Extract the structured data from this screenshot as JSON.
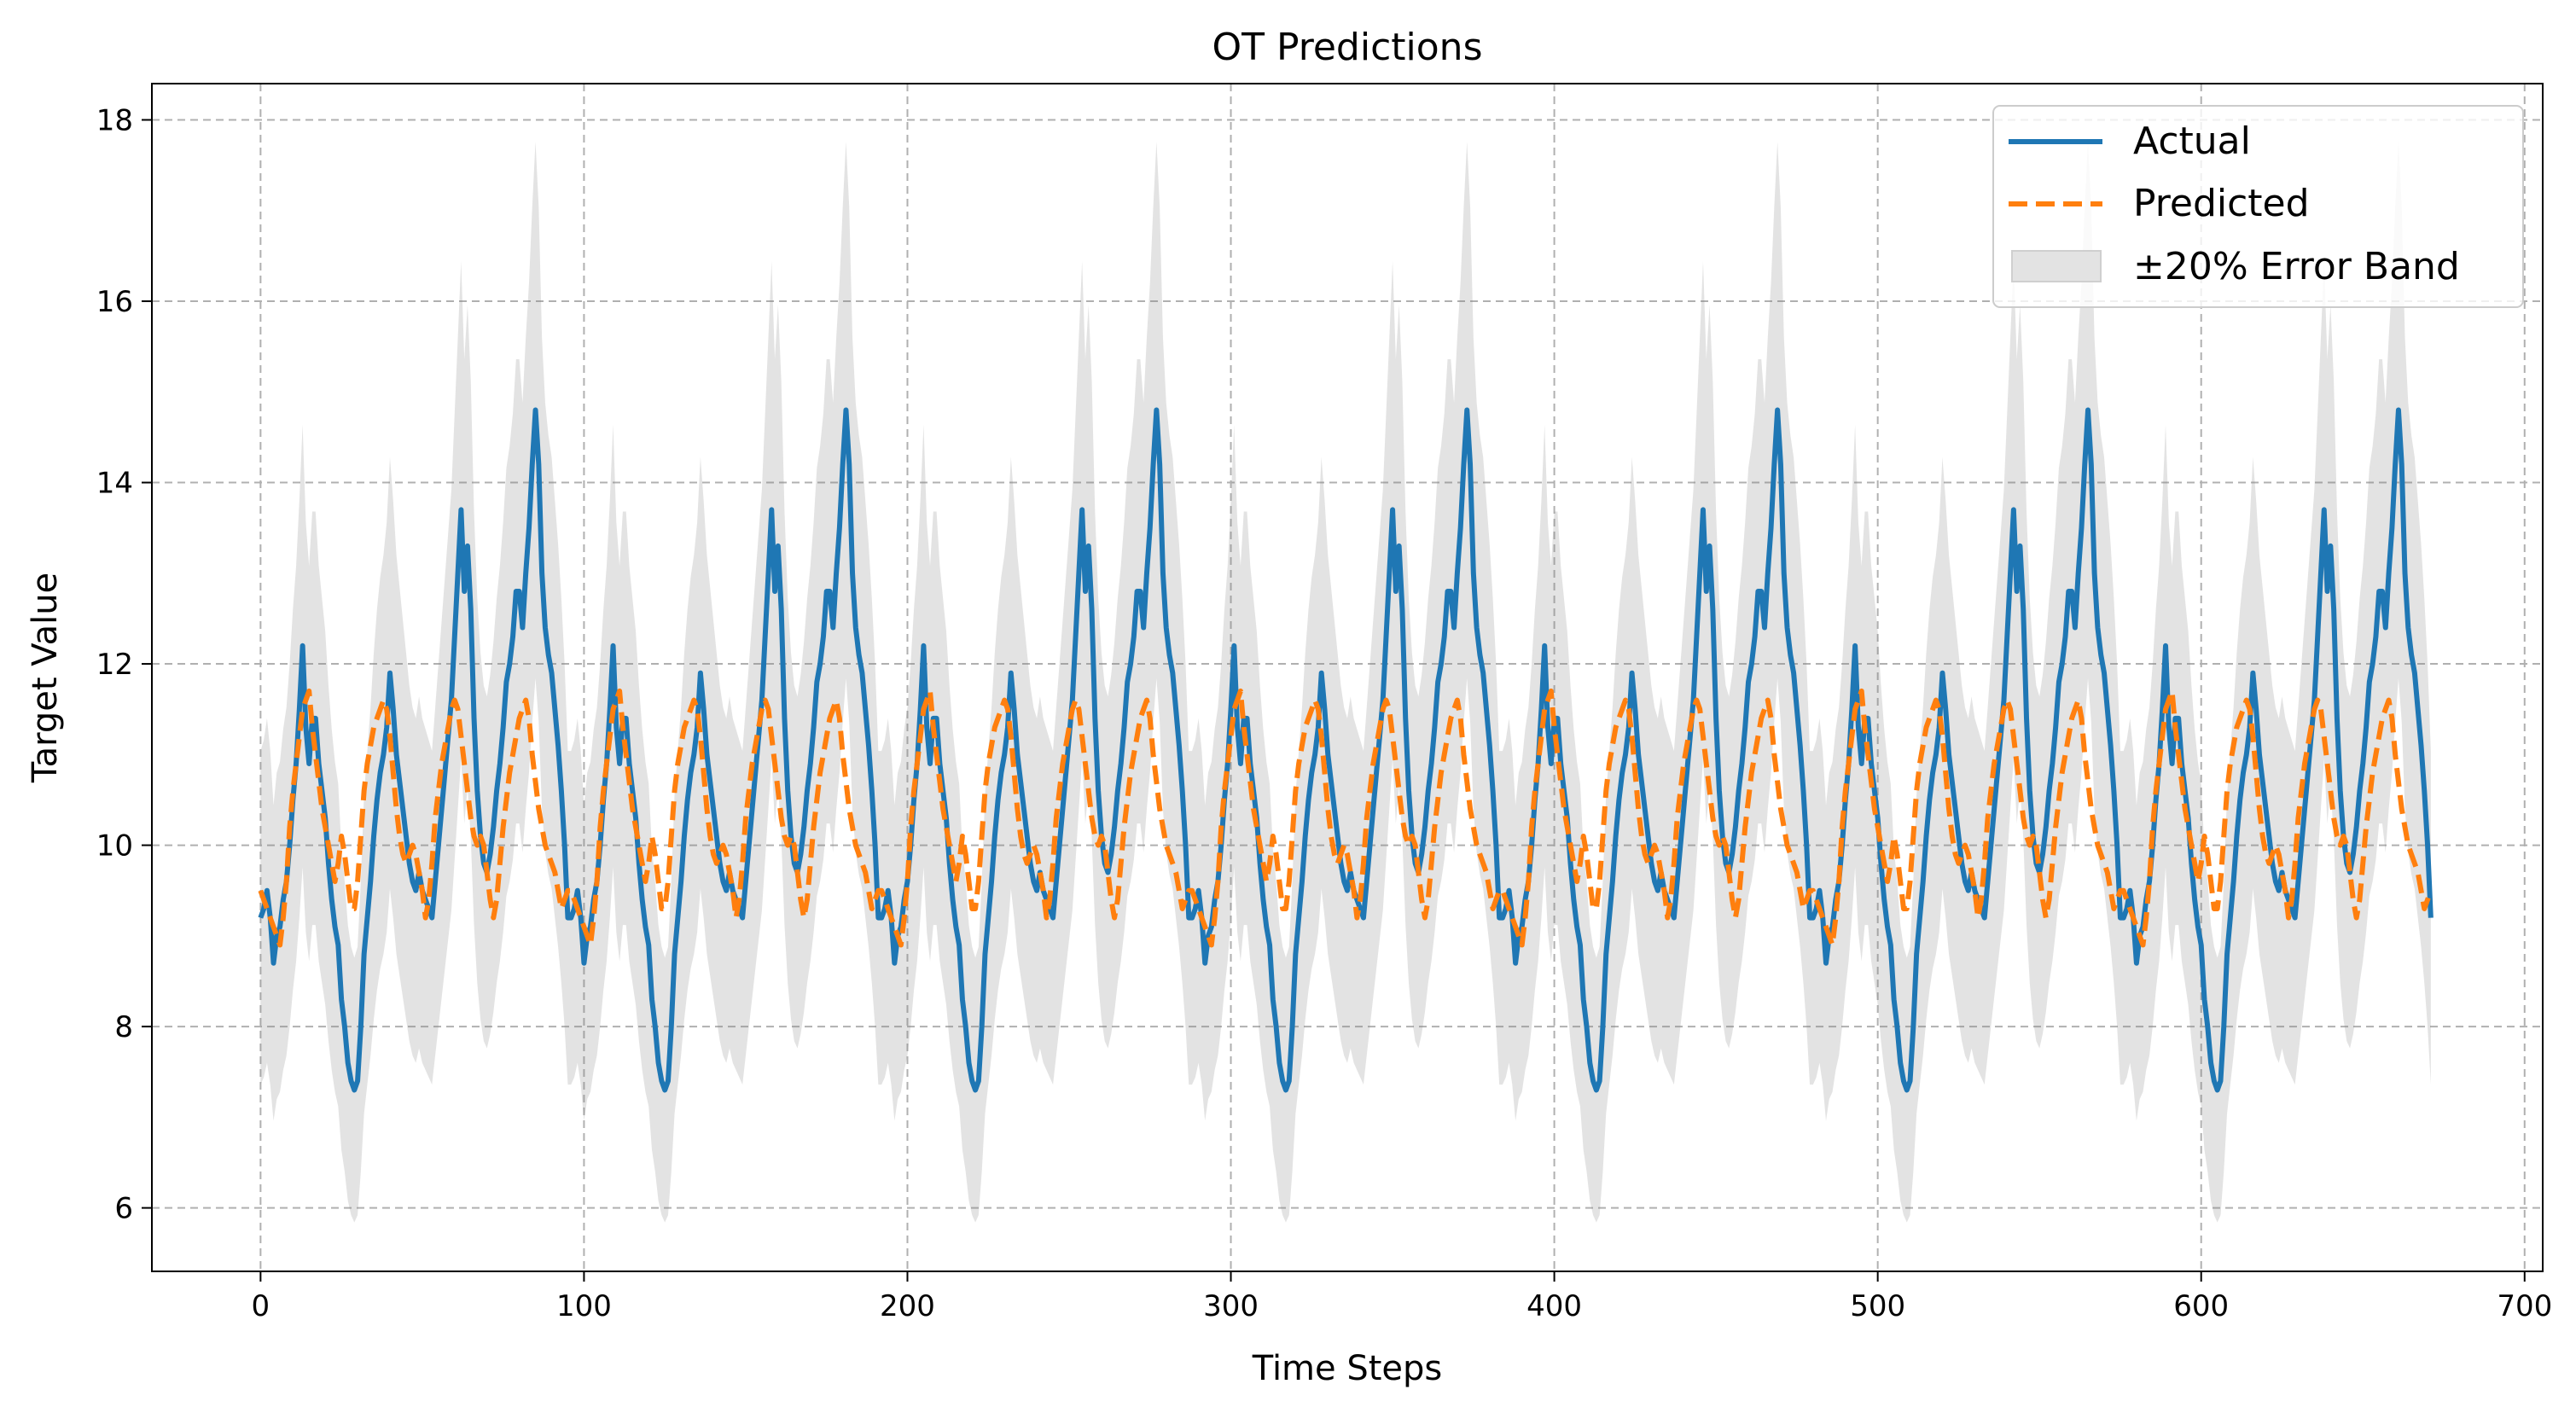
{
  "chart_data": {
    "type": "line",
    "title": "OT Predictions",
    "xlabel": "Time Steps",
    "ylabel": "Target Value",
    "xlim": [
      -33.6,
      705.6
    ],
    "ylim": [
      5.3,
      18.4
    ],
    "x_ticks": [
      0,
      100,
      200,
      300,
      400,
      500,
      600,
      700
    ],
    "y_ticks": [
      6,
      8,
      10,
      12,
      14,
      16,
      18
    ],
    "grid": true,
    "grid_style": "dashed",
    "legend_position": "top-right",
    "n_points": 672,
    "period": 96,
    "series": [
      {
        "name": "Actual",
        "style": "solid",
        "color": "#1f77b4",
        "pattern_x": [
          0,
          1,
          2,
          3,
          4,
          5,
          6,
          7,
          8,
          9,
          10,
          11,
          12,
          13,
          14,
          15,
          16,
          17,
          18,
          19,
          20,
          21,
          22,
          23,
          24,
          25,
          26,
          27,
          28,
          29,
          30,
          31,
          32,
          33,
          34,
          35,
          36,
          37,
          38,
          39,
          40,
          41,
          42,
          43,
          44,
          45,
          46,
          47,
          48,
          49,
          50,
          51,
          52,
          53,
          54,
          55,
          56,
          57,
          58,
          59,
          60,
          61,
          62,
          63,
          64,
          65,
          66,
          67,
          68,
          69,
          70,
          71,
          72,
          73,
          74,
          75,
          76,
          77,
          78,
          79,
          80,
          81,
          82,
          83,
          84,
          85,
          86,
          87,
          88,
          89,
          90,
          91,
          92,
          93,
          94,
          95
        ],
        "pattern_values": [
          9.2,
          9.3,
          9.5,
          9.2,
          8.7,
          9.0,
          9.1,
          9.4,
          9.6,
          10.0,
          10.5,
          10.9,
          11.5,
          12.2,
          11.3,
          10.9,
          11.4,
          11.4,
          10.9,
          10.6,
          10.3,
          9.8,
          9.4,
          9.1,
          8.9,
          8.3,
          8.0,
          7.6,
          7.4,
          7.3,
          7.4,
          8.0,
          8.8,
          9.2,
          9.6,
          10.1,
          10.5,
          10.8,
          11.0,
          11.3,
          11.9,
          11.5,
          11.0,
          10.7,
          10.4,
          10.1,
          9.8,
          9.6,
          9.5,
          9.7,
          9.5,
          9.4,
          9.3,
          9.2,
          9.6,
          10.0,
          10.4,
          10.8,
          11.2,
          11.6,
          12.3,
          13.0,
          13.7,
          12.8,
          13.3,
          12.6,
          11.4,
          10.6,
          10.1,
          9.8,
          9.7,
          9.9,
          10.2,
          10.6,
          10.9,
          11.3,
          11.8,
          12.0,
          12.3,
          12.8,
          12.8,
          12.4,
          13.0,
          13.5,
          14.2,
          14.8,
          14.2,
          13.0,
          12.4,
          12.1,
          11.9,
          11.5,
          11.1,
          10.6,
          10.0,
          9.2
        ]
      },
      {
        "name": "Predicted",
        "style": "dashed",
        "color": "#ff7f0e",
        "pattern_x": [
          0,
          1,
          2,
          3,
          4,
          5,
          6,
          7,
          8,
          9,
          10,
          11,
          12,
          13,
          14,
          15,
          16,
          17,
          18,
          19,
          20,
          21,
          22,
          23,
          24,
          25,
          26,
          27,
          28,
          29,
          30,
          31,
          32,
          33,
          34,
          35,
          36,
          37,
          38,
          39,
          40,
          41,
          42,
          43,
          44,
          45,
          46,
          47,
          48,
          49,
          50,
          51,
          52,
          53,
          54,
          55,
          56,
          57,
          58,
          59,
          60,
          61,
          62,
          63,
          64,
          65,
          66,
          67,
          68,
          69,
          70,
          71,
          72,
          73,
          74,
          75,
          76,
          77,
          78,
          79,
          80,
          81,
          82,
          83,
          84,
          85,
          86,
          87,
          88,
          89,
          90,
          91,
          92,
          93,
          94,
          95
        ],
        "pattern_values": [
          9.5,
          9.4,
          9.3,
          9.2,
          9.1,
          9.0,
          8.9,
          9.2,
          9.6,
          10.2,
          10.6,
          10.9,
          11.2,
          11.5,
          11.6,
          11.7,
          11.3,
          11.0,
          10.7,
          10.4,
          10.2,
          10.0,
          9.8,
          9.6,
          9.8,
          10.1,
          9.9,
          9.6,
          9.3,
          9.3,
          9.6,
          10.1,
          10.6,
          10.9,
          11.1,
          11.3,
          11.4,
          11.5,
          11.6,
          11.5,
          11.2,
          10.8,
          10.4,
          10.1,
          9.9,
          9.8,
          9.9,
          10.0,
          9.9,
          9.7,
          9.5,
          9.2,
          9.4,
          9.8,
          10.3,
          10.6,
          10.9,
          11.1,
          11.3,
          11.5,
          11.6,
          11.5,
          11.2,
          10.9,
          10.6,
          10.3,
          10.1,
          10.0,
          10.1,
          10.0,
          9.7,
          9.4,
          9.2,
          9.4,
          9.8,
          10.2,
          10.5,
          10.8,
          11.0,
          11.2,
          11.4,
          11.5,
          11.6,
          11.4,
          11.0,
          10.7,
          10.4,
          10.2,
          10.0,
          9.9,
          9.8,
          9.7,
          9.5,
          9.3,
          9.4,
          9.5
        ]
      }
    ],
    "error_band": {
      "name": "±20% Error Band",
      "of_series": "Actual",
      "relative_width": 0.2,
      "color": "#808080"
    }
  }
}
